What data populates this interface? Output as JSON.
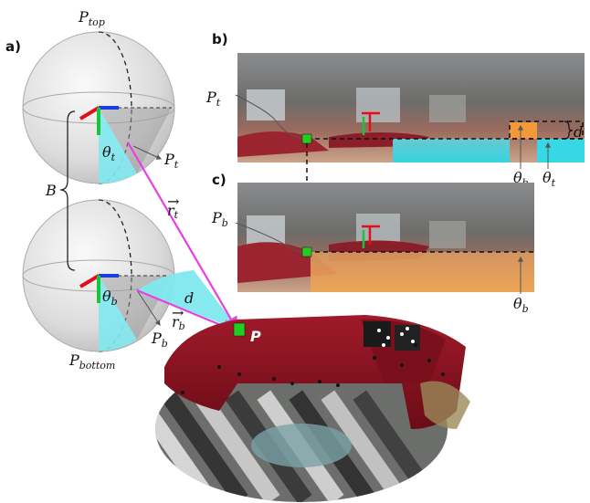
{
  "figure": {
    "panel_labels": {
      "a": "a)",
      "b": "b)",
      "c": "c)"
    },
    "sphere_top": {
      "label_main": "P",
      "label_sub": "top",
      "theta_main": "θ",
      "theta_sub": "t",
      "point_main": "P",
      "point_sub": "t"
    },
    "sphere_bottom": {
      "label_main": "P",
      "label_sub": "bottom",
      "theta_main": "θ",
      "theta_sub": "b",
      "point_main": "P",
      "point_sub": "b"
    },
    "baseline_label": "B",
    "vector_top": {
      "main": "r",
      "sub": "t",
      "arrow": "→"
    },
    "vector_bottom": {
      "main": "r",
      "sub": "b",
      "arrow": "→"
    },
    "disparity_label": "d",
    "point_label": "P",
    "panel_b": {
      "point_main": "P",
      "point_sub": "t",
      "theta_b_main": "θ",
      "theta_b_sub": "b",
      "theta_t_main": "θ",
      "theta_t_sub": "t",
      "d_label": "d"
    },
    "panel_c": {
      "point_main": "P",
      "point_sub": "b",
      "theta_b_main": "θ",
      "theta_b_sub": "b"
    },
    "colors": {
      "cyan_region": "#7fe8ee",
      "magenta_vector": "#e83ee8",
      "orange_band": "#f29a3a",
      "green_point": "#22cc22",
      "axis_red": "#e0101a",
      "axis_blue": "#1a3fe0",
      "axis_green": "#19c43a",
      "sofa_red": "#8c1220"
    }
  }
}
